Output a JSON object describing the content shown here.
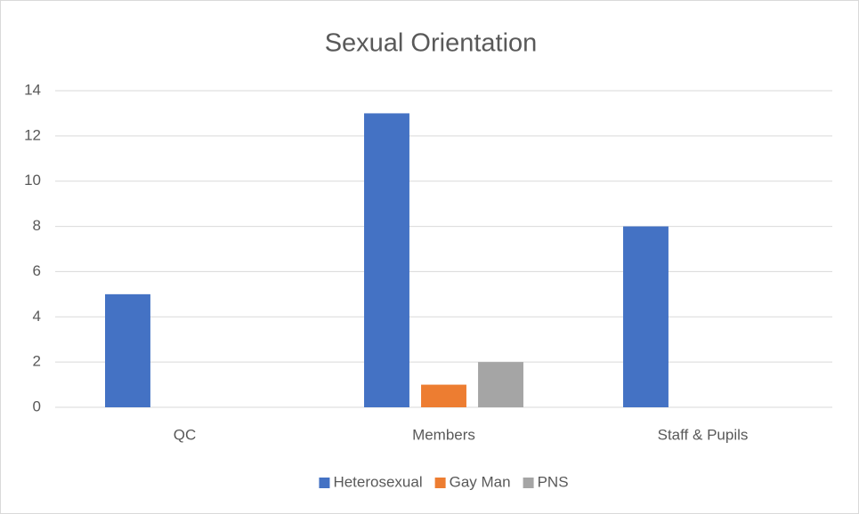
{
  "chart_data": {
    "type": "bar",
    "title": "Sexual Orientation",
    "categories": [
      "QC",
      "Members",
      "Staff & Pupils"
    ],
    "series": [
      {
        "name": "Heterosexual",
        "color": "#4472c4",
        "values": [
          5,
          13,
          8
        ]
      },
      {
        "name": "Gay Man",
        "color": "#ed7d31",
        "values": [
          0,
          1,
          0
        ]
      },
      {
        "name": "PNS",
        "color": "#a5a5a5",
        "values": [
          0,
          2,
          0
        ]
      }
    ],
    "ylim": [
      0,
      14
    ],
    "yticks": [
      0,
      2,
      4,
      6,
      8,
      10,
      12,
      14
    ],
    "grid": true,
    "legend": "bottom"
  }
}
